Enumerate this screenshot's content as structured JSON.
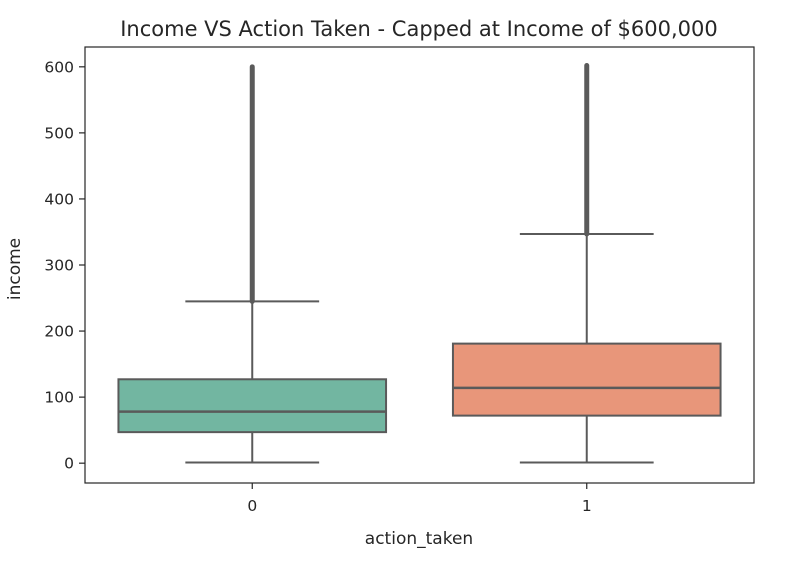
{
  "chart_data": {
    "type": "box",
    "title": "Income VS Action Taken - Capped at Income of $600,000",
    "xlabel": "action_taken",
    "ylabel": "income",
    "categories": [
      "0",
      "1"
    ],
    "ylim": [
      -30,
      630
    ],
    "yticks": [
      "0",
      "100",
      "200",
      "300",
      "400",
      "500",
      "600"
    ],
    "ytick_values": [
      0,
      100,
      200,
      300,
      400,
      500,
      600
    ],
    "grid": false,
    "legend": "none",
    "series": [
      {
        "category": "0",
        "whisker_low": 1,
        "q1": 47,
        "median": 78,
        "q3": 127,
        "whisker_high": 245,
        "outlier_range": [
          245,
          600
        ],
        "color": "#72b6a1"
      },
      {
        "category": "1",
        "whisker_low": 1,
        "q1": 72,
        "median": 114,
        "q3": 181,
        "whisker_high": 347,
        "outlier_range": [
          347,
          602
        ],
        "color": "#e8967a"
      }
    ],
    "line_color": "#5a5a5a"
  }
}
